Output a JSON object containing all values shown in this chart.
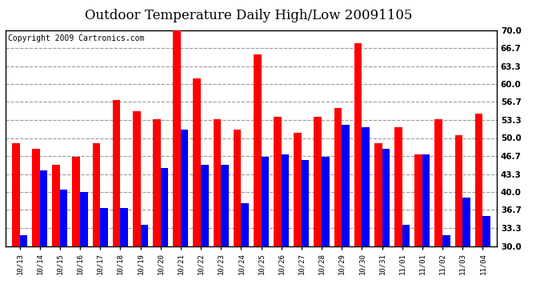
{
  "title": "Outdoor Temperature Daily High/Low 20091105",
  "copyright": "Copyright 2009 Cartronics.com",
  "labels": [
    "10/13",
    "10/14",
    "10/15",
    "10/16",
    "10/17",
    "10/18",
    "10/19",
    "10/20",
    "10/21",
    "10/22",
    "10/23",
    "10/24",
    "10/25",
    "10/26",
    "10/27",
    "10/28",
    "10/29",
    "10/30",
    "10/31",
    "11/01",
    "11/01",
    "11/02",
    "11/03",
    "11/04"
  ],
  "highs": [
    49.0,
    48.0,
    45.0,
    46.5,
    49.0,
    57.0,
    55.0,
    53.5,
    70.0,
    61.0,
    53.5,
    51.5,
    65.5,
    54.0,
    51.0,
    54.0,
    55.5,
    67.5,
    49.0,
    52.0,
    47.0,
    53.5,
    50.5,
    54.5
  ],
  "lows": [
    32.0,
    44.0,
    40.5,
    40.0,
    37.0,
    37.0,
    34.0,
    44.5,
    51.5,
    45.0,
    45.0,
    38.0,
    46.5,
    47.0,
    46.0,
    46.5,
    52.5,
    52.0,
    48.0,
    34.0,
    47.0,
    32.0,
    39.0,
    35.5
  ],
  "bar_width": 0.38,
  "ylim": [
    30.0,
    70.0
  ],
  "yticks": [
    30.0,
    33.3,
    36.7,
    40.0,
    43.3,
    46.7,
    50.0,
    53.3,
    56.7,
    60.0,
    63.3,
    66.7,
    70.0
  ],
  "high_color": "#ff0000",
  "low_color": "#0000ff",
  "bg_color": "#ffffff",
  "grid_color": "#999999",
  "title_fontsize": 12,
  "copyright_fontsize": 7
}
